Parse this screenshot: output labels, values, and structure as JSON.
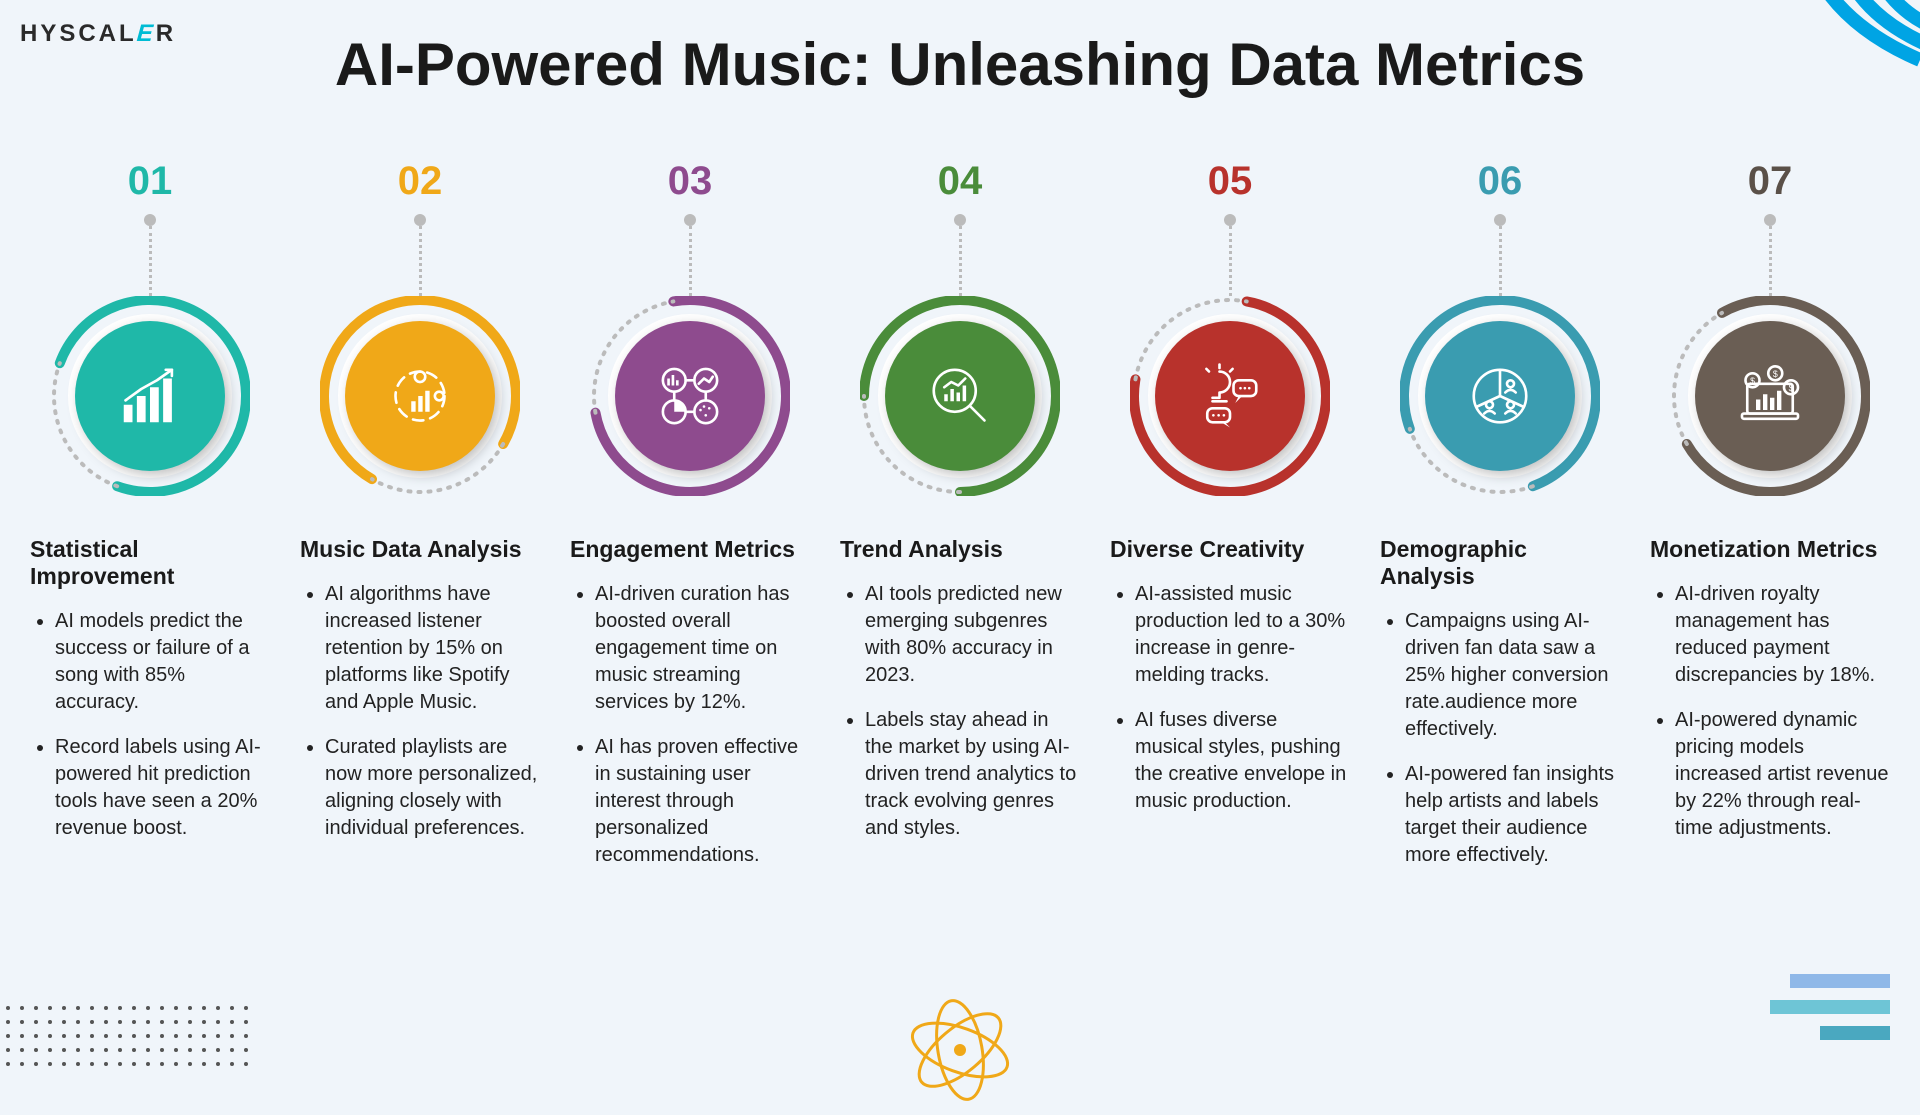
{
  "brand": {
    "name": "HYSCAL",
    "accent": "E",
    "suffix": "R"
  },
  "title": "AI-Powered Music: Unleashing Data Metrics",
  "styling": {
    "background": "#f0f5fa",
    "title_fontsize": 60,
    "number_fontsize": 40,
    "card_title_fontsize": 23,
    "bullet_fontsize": 20,
    "circle_diameter": 200,
    "inner_circle_diameter": 150,
    "corner_stripe_color": "#00a4e4",
    "dotted_line_color": "#bbbbbb"
  },
  "cards": [
    {
      "num": "01",
      "num_color": "#1fb8a8",
      "circle_color": "#1fb8a8",
      "arc_rotation": 200,
      "icon": "bar-growth",
      "title": "Statistical Improvement",
      "bullets": [
        "AI models predict the success or failure of a song with 85% accuracy.",
        "Record labels using AI-powered hit prediction tools have seen a 20% revenue boost."
      ]
    },
    {
      "num": "02",
      "num_color": "#f0a818",
      "circle_color": "#f0a818",
      "arc_rotation": 120,
      "icon": "data-cycle",
      "title": "Music Data Analysis",
      "bullets": [
        "AI algorithms have increased listener retention by 15% on platforms like Spotify and Apple Music.",
        "Curated playlists are now more personalized, aligning closely with individual preferences."
      ]
    },
    {
      "num": "03",
      "num_color": "#8e4b8e",
      "circle_color": "#8e4b8e",
      "arc_rotation": 260,
      "icon": "metrics-grid",
      "title": "Engagement Metrics",
      "bullets": [
        "AI-driven curation has boosted overall engagement time on music streaming services by 12%.",
        "AI has proven effective in sustaining user interest through personalized recommendations."
      ]
    },
    {
      "num": "04",
      "num_color": "#4a8c3a",
      "circle_color": "#4a8c3a",
      "arc_rotation": 180,
      "icon": "magnify-trend",
      "title": "Trend Analysis",
      "bullets": [
        "AI tools predicted new emerging subgenres with 80% accuracy in 2023.",
        "Labels stay ahead in the market by using AI-driven trend analytics to track evolving genres and styles."
      ]
    },
    {
      "num": "05",
      "num_color": "#b8322c",
      "circle_color": "#b8322c",
      "arc_rotation": 280,
      "icon": "creativity",
      "title": "Diverse Creativity",
      "bullets": [
        "AI-assisted music production led to a 30% increase in genre-melding tracks.",
        "AI fuses diverse musical styles, pushing the creative envelope in music production."
      ]
    },
    {
      "num": "06",
      "num_color": "#3a9cb0",
      "circle_color": "#3a9cb0",
      "arc_rotation": 160,
      "icon": "pie-people",
      "title": "Demographic Analysis",
      "bullets": [
        "Campaigns using AI-driven fan data saw a 25% higher conversion rate.audience more effectively.",
        "AI-powered fan insights help artists and labels target their audience more effectively."
      ]
    },
    {
      "num": "07",
      "num_color": "#5a5048",
      "circle_color": "#6a5e54",
      "arc_rotation": 240,
      "icon": "money-laptop",
      "title": "Monetization Metrics",
      "bullets": [
        "AI-driven royalty management has reduced payment discrepancies by 18%.",
        " AI-powered dynamic pricing models increased artist revenue by 22% through real-time adjustments."
      ]
    }
  ]
}
